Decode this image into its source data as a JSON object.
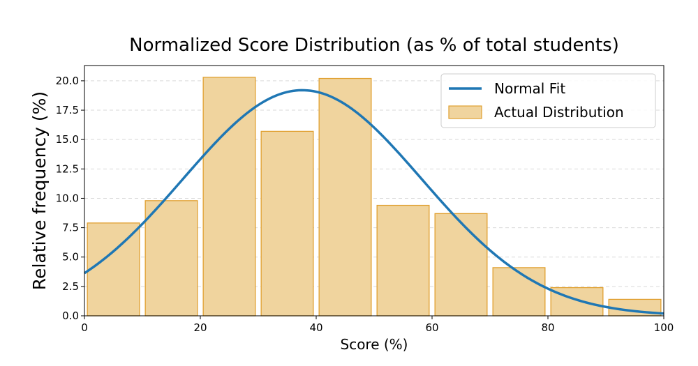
{
  "chart_data": {
    "type": "bar",
    "title": "Normalized Score Distribution (as % of total students)",
    "xlabel": "Score (%)",
    "ylabel": "Relative frequency (%)",
    "xlim": [
      0,
      100
    ],
    "ylim": [
      0,
      21.3
    ],
    "xticks": [
      "0",
      "20",
      "40",
      "60",
      "80",
      "100"
    ],
    "yticks": [
      "0.0",
      "2.5",
      "5.0",
      "7.5",
      "10.0",
      "12.5",
      "15.0",
      "17.5",
      "20.0"
    ],
    "grid": "horizontal dashed",
    "legend_position": "top-right",
    "series": [
      {
        "name": "Actual Distribution",
        "type": "bar",
        "color": "#f0d49e",
        "edge_color": "#e0a030",
        "bins": [
          [
            0,
            10
          ],
          [
            10,
            20
          ],
          [
            20,
            30
          ],
          [
            30,
            40
          ],
          [
            40,
            50
          ],
          [
            50,
            60
          ],
          [
            60,
            70
          ],
          [
            70,
            80
          ],
          [
            80,
            90
          ],
          [
            90,
            100
          ]
        ],
        "values": [
          7.9,
          9.8,
          20.3,
          15.7,
          20.2,
          9.4,
          8.7,
          4.1,
          2.4,
          1.4
        ]
      },
      {
        "name": "Normal Fit",
        "type": "line",
        "color": "#1f77b4",
        "mean": 37.6,
        "std": 20.6,
        "peak": 19.2
      }
    ]
  }
}
